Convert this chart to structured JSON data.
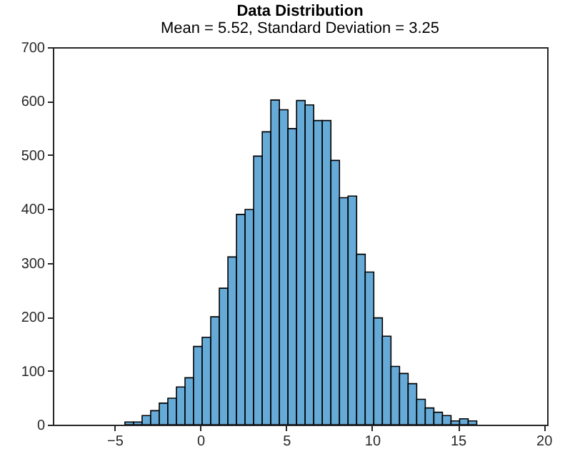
{
  "chart_data": {
    "type": "histogram",
    "title": "Data Distribution",
    "subtitle": "Mean = 5.52, Standard Deviation = 3.25",
    "bins": [
      -4.4,
      -3.9,
      -3.4,
      -2.9,
      -2.4,
      -1.9,
      -1.4,
      -0.9,
      -0.4,
      0.1,
      0.6,
      1.1,
      1.6,
      2.1,
      2.6,
      3.1,
      3.6,
      4.1,
      4.6,
      5.1,
      5.6,
      6.1,
      6.6,
      7.1,
      7.6,
      8.1,
      8.6,
      9.1,
      9.6,
      10.1,
      10.6,
      11.1,
      11.6,
      12.1,
      12.6,
      13.1,
      13.6,
      14.1,
      14.6,
      15.1,
      15.6,
      16.1
    ],
    "values": [
      5,
      5,
      17,
      26,
      40,
      49,
      70,
      87,
      145,
      162,
      200,
      253,
      311,
      390,
      399,
      498,
      543,
      602,
      584,
      549,
      601,
      593,
      564,
      564,
      490,
      421,
      424,
      316,
      283,
      198,
      164,
      108,
      95,
      76,
      47,
      31,
      23,
      17,
      7,
      11,
      7
    ],
    "color": "#66aad7",
    "xlim": [
      -8.6,
      20.2
    ],
    "xticks": [
      -5,
      0,
      5,
      10,
      15,
      20
    ],
    "ylim": [
      0,
      700
    ],
    "yticks": [
      0,
      100,
      200,
      300,
      400,
      500,
      600,
      700
    ],
    "grid": false
  }
}
